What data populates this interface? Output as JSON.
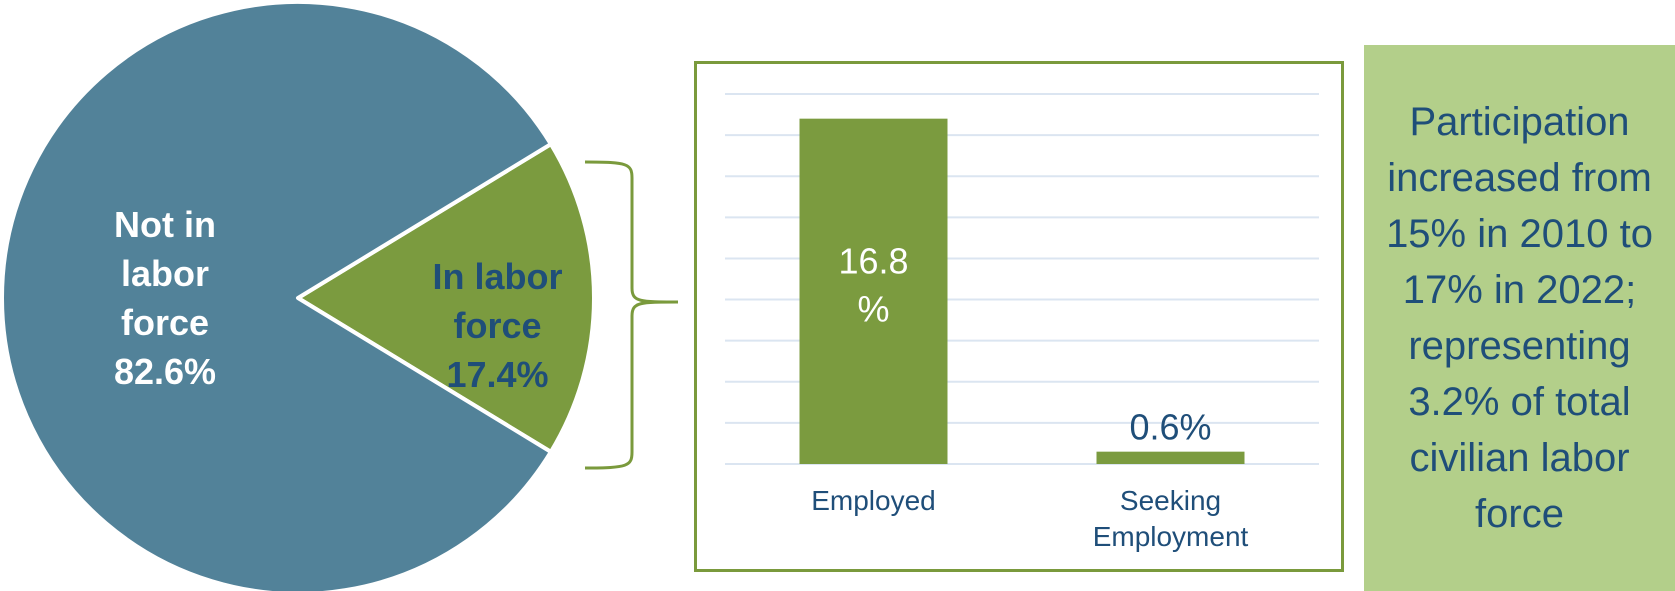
{
  "chart_data": [
    {
      "type": "pie",
      "slices": [
        {
          "label_lines": [
            "Not in",
            "labor",
            "force",
            "82.6%"
          ],
          "value": 82.6,
          "color": "#528299"
        },
        {
          "label_lines": [
            "In labor",
            "force",
            "17.4%"
          ],
          "value": 17.4,
          "color": "#7b9b3f"
        }
      ]
    },
    {
      "type": "bar",
      "categories": [
        "Employed",
        "Seeking Employment"
      ],
      "category_lines": [
        [
          "Employed"
        ],
        [
          "Seeking",
          "Employment"
        ]
      ],
      "values": [
        16.8,
        0.6
      ],
      "data_labels": [
        [
          "16.8",
          "%"
        ],
        [
          "0.6%"
        ]
      ],
      "ylim": [
        0,
        18
      ],
      "grid": true,
      "bar_color": "#7b9b3f"
    }
  ],
  "note": {
    "text": "Participation increased from 15% in 2010 to 17% in 2022; representing 3.2% of total civilian labor force"
  },
  "colors": {
    "panel_border": "#7a9a3c",
    "note_background": "#b3cf8a",
    "text_dark_blue": "#1f4e79",
    "gridline": "#dbe5f1"
  }
}
